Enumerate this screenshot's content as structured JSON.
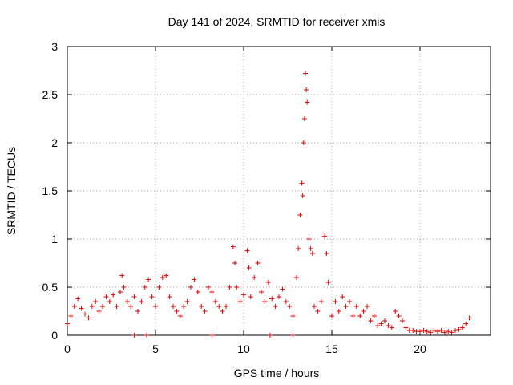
{
  "chart_data": {
    "type": "scatter",
    "title": "Day 141 of 2024, SRMTID for receiver xmis",
    "xlabel": "GPS time / hours",
    "ylabel": "SRMTID / TECUs",
    "xlim": [
      0,
      24
    ],
    "ylim": [
      0,
      3
    ],
    "x_ticks": [
      0,
      5,
      10,
      15,
      20
    ],
    "y_ticks": [
      0,
      0.5,
      1,
      1.5,
      2,
      2.5,
      3
    ],
    "x_tick_labels": [
      "0",
      "5",
      "10",
      "15",
      "20"
    ],
    "y_tick_labels": [
      "0",
      "0.5",
      "1",
      "1.5",
      "2",
      "2.5",
      "3"
    ],
    "grid": true,
    "marker": "+",
    "color": "#e00000",
    "series": [
      {
        "name": "SRMTID",
        "x": [
          0.0,
          0.2,
          0.4,
          0.6,
          0.8,
          1.0,
          1.2,
          1.4,
          1.6,
          1.8,
          2.0,
          2.2,
          2.4,
          2.6,
          2.8,
          3.0,
          3.1,
          3.2,
          3.4,
          3.6,
          3.8,
          4.0,
          4.2,
          4.4,
          4.6,
          4.8,
          5.0,
          5.2,
          5.4,
          5.6,
          5.8,
          6.0,
          6.2,
          6.4,
          6.6,
          6.8,
          7.0,
          7.2,
          7.4,
          7.6,
          7.8,
          8.0,
          8.2,
          8.4,
          8.6,
          8.8,
          9.0,
          9.2,
          9.4,
          9.5,
          9.6,
          9.8,
          10.0,
          10.2,
          10.3,
          10.4,
          10.6,
          10.8,
          11.0,
          11.2,
          11.4,
          11.6,
          11.8,
          12.0,
          12.2,
          12.4,
          12.6,
          12.8,
          13.0,
          13.1,
          13.2,
          13.3,
          13.35,
          13.4,
          13.45,
          13.5,
          13.55,
          13.6,
          13.7,
          13.8,
          13.9,
          14.0,
          14.2,
          14.4,
          14.6,
          14.7,
          14.8,
          15.0,
          15.2,
          15.4,
          15.6,
          15.8,
          16.0,
          16.2,
          16.4,
          16.6,
          16.8,
          17.0,
          17.2,
          17.4,
          17.6,
          17.8,
          18.0,
          18.2,
          18.4,
          18.6,
          18.8,
          19.0,
          19.2,
          19.4,
          19.6,
          19.8,
          20.0,
          20.2,
          20.4,
          20.6,
          20.8,
          21.0,
          21.2,
          21.4,
          21.6,
          21.8,
          22.0,
          22.2,
          22.4,
          22.6,
          22.8,
          3.8,
          4.5,
          8.2,
          11.5,
          12.8
        ],
        "y": [
          0.12,
          0.2,
          0.3,
          0.38,
          0.28,
          0.22,
          0.18,
          0.3,
          0.35,
          0.25,
          0.3,
          0.4,
          0.35,
          0.42,
          0.3,
          0.45,
          0.62,
          0.5,
          0.35,
          0.3,
          0.4,
          0.25,
          0.35,
          0.5,
          0.58,
          0.4,
          0.3,
          0.5,
          0.6,
          0.62,
          0.4,
          0.3,
          0.25,
          0.2,
          0.3,
          0.35,
          0.5,
          0.58,
          0.45,
          0.3,
          0.25,
          0.5,
          0.45,
          0.35,
          0.3,
          0.25,
          0.3,
          0.5,
          0.92,
          0.75,
          0.5,
          0.35,
          0.42,
          0.88,
          0.7,
          0.4,
          0.6,
          0.75,
          0.45,
          0.35,
          0.55,
          0.38,
          0.3,
          0.4,
          0.48,
          0.35,
          0.3,
          0.2,
          0.6,
          0.9,
          1.25,
          1.58,
          1.45,
          2.0,
          2.25,
          2.72,
          2.55,
          2.42,
          1.0,
          0.9,
          0.85,
          0.3,
          0.25,
          0.35,
          1.03,
          0.85,
          0.55,
          0.2,
          0.35,
          0.25,
          0.4,
          0.3,
          0.35,
          0.2,
          0.3,
          0.2,
          0.25,
          0.3,
          0.15,
          0.2,
          0.1,
          0.12,
          0.15,
          0.1,
          0.08,
          0.25,
          0.2,
          0.15,
          0.08,
          0.05,
          0.05,
          0.04,
          0.04,
          0.05,
          0.04,
          0.03,
          0.05,
          0.04,
          0.05,
          0.03,
          0.04,
          0.03,
          0.05,
          0.06,
          0.08,
          0.12,
          0.18,
          0.0,
          0.0,
          0.0,
          0.0,
          0.0
        ]
      }
    ]
  }
}
